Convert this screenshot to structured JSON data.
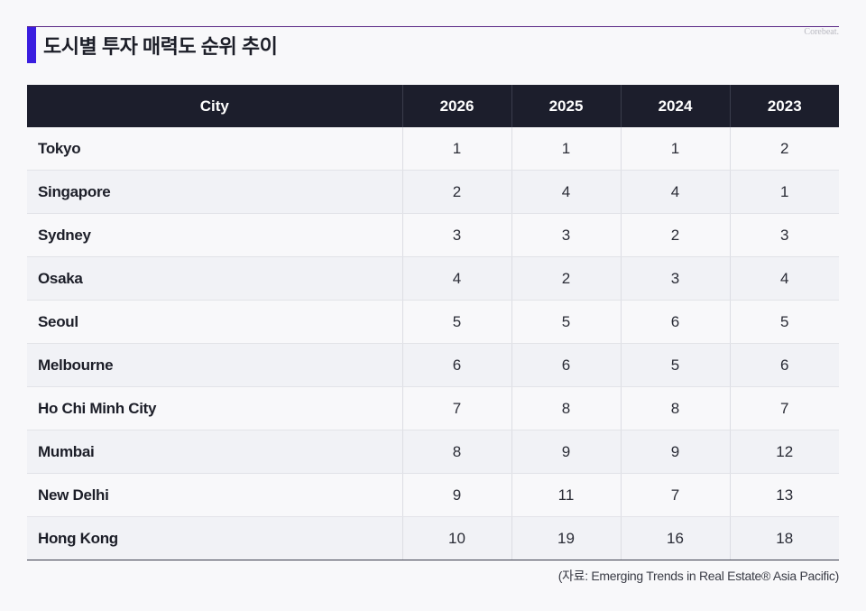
{
  "title": "도시별 투자 매력도 순위 추이",
  "brand": "Corebeat.",
  "source": "(자료: Emerging Trends in Real Estate® Asia Pacific)",
  "colors": {
    "accent_bar": "#3a1ee0",
    "top_rule": "#5b2a86",
    "header_bg": "#1c1e2c"
  },
  "chart_data": {
    "type": "table",
    "columns": [
      "City",
      "2026",
      "2025",
      "2024",
      "2023"
    ],
    "rows": [
      [
        "Tokyo",
        "1",
        "1",
        "1",
        "2"
      ],
      [
        "Singapore",
        "2",
        "4",
        "4",
        "1"
      ],
      [
        "Sydney",
        "3",
        "3",
        "2",
        "3"
      ],
      [
        "Osaka",
        "4",
        "2",
        "3",
        "4"
      ],
      [
        "Seoul",
        "5",
        "5",
        "6",
        "5"
      ],
      [
        "Melbourne",
        "6",
        "6",
        "5",
        "6"
      ],
      [
        "Ho Chi Minh City",
        "7",
        "8",
        "8",
        "7"
      ],
      [
        "Mumbai",
        "8",
        "9",
        "9",
        "12"
      ],
      [
        "New Delhi",
        "9",
        "11",
        "7",
        "13"
      ],
      [
        "Hong Kong",
        "10",
        "19",
        "16",
        "18"
      ]
    ]
  }
}
